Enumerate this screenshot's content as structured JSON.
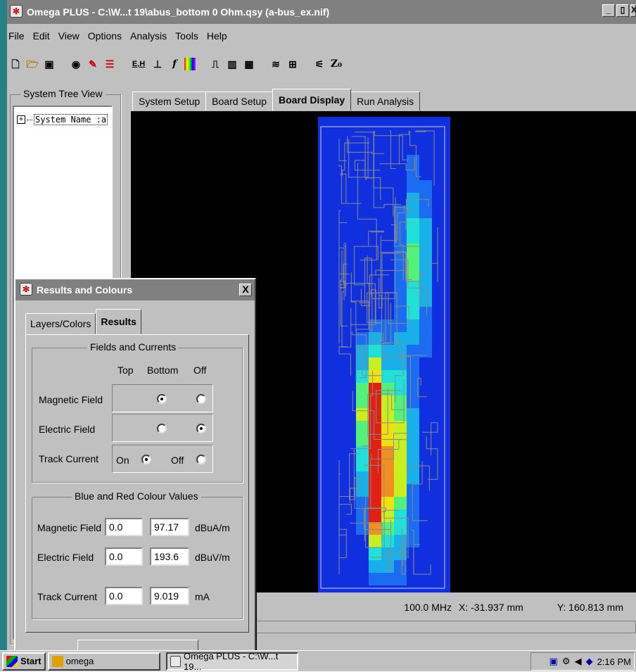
{
  "window": {
    "title": "Omega PLUS - C:\\W...t 19\\abus_bottom 0 Ohm.qsy (a-bus_ex.nif)",
    "controls": [
      "_",
      "▯",
      "X"
    ]
  },
  "menu": [
    "File",
    "Edit",
    "View",
    "Options",
    "Analysis",
    "Tools",
    "Help"
  ],
  "toolbar": {
    "eh_label": "E,H",
    "z_label": "Z₀",
    "f_label": "f"
  },
  "tree": {
    "group_label": "System Tree View",
    "root_item": "System Name :a",
    "expander": "+"
  },
  "tabs": [
    "System Setup",
    "Board Setup",
    "Board Display",
    "Run Analysis"
  ],
  "active_tab": "Board Display",
  "status": {
    "frequency": "100.0 MHz",
    "x_coord": "X: -31.937 mm",
    "y_coord": "Y: 160.813 mm"
  },
  "dialog": {
    "title": "Results and Colours",
    "close": "X",
    "tabs": [
      "Layers/Colors",
      "Results"
    ],
    "active_tab": "Results",
    "fields_group": {
      "label": "Fields and Currents",
      "col_top": "Top",
      "col_bottom": "Bottom",
      "col_off": "Off",
      "magnetic_label": "Magnetic Field",
      "electric_label": "Electric Field",
      "track_label": "Track Current",
      "track_on": "On",
      "track_off": "Off",
      "magnetic_selection": "Bottom",
      "electric_selection": "Off",
      "track_selection": "On"
    },
    "colour_group": {
      "label": "Blue and Red Colour Values",
      "magnetic_label": "Magnetic Field",
      "magnetic_min": "0.0",
      "magnetic_max": "97.17",
      "magnetic_unit": "dBuA/m",
      "electric_label": "Electric Field",
      "electric_min": "0.0",
      "electric_max": "193.6",
      "electric_unit": "dBuV/m",
      "track_label": "Track Current",
      "track_min": "0.0",
      "track_max": "9.019",
      "track_unit": "mA"
    }
  },
  "taskbar": {
    "start": "Start",
    "task1": "omega",
    "task2": "Omega PLUS - C:\\W...t 19...",
    "clock": "2:16 PM"
  },
  "heatmap": {
    "colors": [
      "#1030e0",
      "#1b6cf0",
      "#19b0ea",
      "#20e0d8",
      "#55f07a",
      "#c8f020",
      "#f0e010",
      "#f09020",
      "#e02010"
    ]
  }
}
